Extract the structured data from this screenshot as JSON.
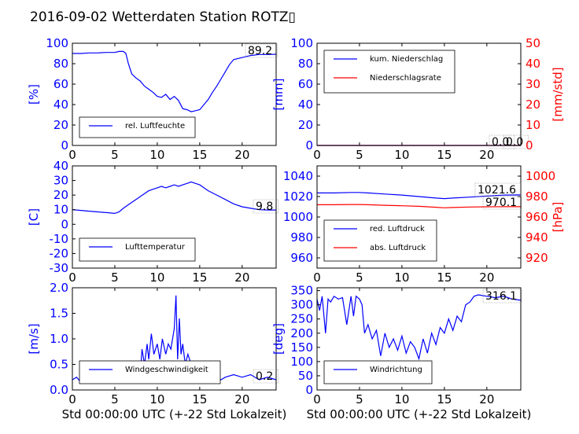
{
  "figure": {
    "title": "2016-09-02 Wetterdaten Station ROTZ▯"
  },
  "chart_data": [
    {
      "id": "humidity",
      "type": "line",
      "ylabel": "[%]",
      "ylim": [
        0,
        100
      ],
      "yticks": [
        0,
        20,
        40,
        60,
        80,
        100
      ],
      "xlim": [
        0,
        24
      ],
      "xticks": [
        0,
        5,
        10,
        15,
        20
      ],
      "series": [
        {
          "name": "rel. Luftfeuchte",
          "color": "#0000ff",
          "x": [
            0,
            1,
            2,
            3,
            4,
            5,
            5.5,
            6,
            6.3,
            6.6,
            7,
            7.5,
            8,
            8.5,
            9,
            9.5,
            10,
            10.5,
            11,
            11.5,
            12,
            12.5,
            13,
            13.5,
            14,
            14.5,
            15,
            15.5,
            16,
            16.5,
            17,
            17.5,
            18,
            18.5,
            19,
            20,
            21,
            22,
            23,
            24
          ],
          "y": [
            90,
            90,
            90.5,
            90.5,
            91,
            91,
            92,
            92,
            90,
            80,
            70,
            66,
            63,
            58,
            55,
            52,
            48,
            47,
            50,
            45,
            48,
            44,
            36,
            35,
            33,
            34,
            35,
            40,
            45,
            52,
            58,
            65,
            72,
            79,
            84,
            86,
            88,
            89,
            89,
            89.2
          ]
        }
      ],
      "value_label": "89.2"
    },
    {
      "id": "precip",
      "type": "line",
      "ylabel": "[mm]",
      "ylim": [
        0,
        100
      ],
      "yticks": [
        0,
        20,
        40,
        60,
        80,
        100
      ],
      "ylabel_right": "[mm/std]",
      "ylim_right": [
        0,
        50
      ],
      "yticks_right": [
        0,
        10,
        20,
        30,
        40,
        50
      ],
      "xlim": [
        0,
        24
      ],
      "xticks": [
        0,
        5,
        10,
        15,
        20
      ],
      "series": [
        {
          "name": "kum. Niederschlag",
          "color": "#0000ff",
          "axis": "left",
          "x": [
            0,
            24
          ],
          "y": [
            0,
            0
          ]
        },
        {
          "name": "Niederschlagsrate",
          "color": "#ff0000",
          "axis": "right",
          "x": [
            0,
            24
          ],
          "y": [
            0,
            0
          ]
        }
      ],
      "value_labels": [
        "0.0",
        "0.0"
      ]
    },
    {
      "id": "temperature",
      "type": "line",
      "ylabel": "[C]",
      "ylim": [
        -30,
        40
      ],
      "yticks": [
        -30,
        -20,
        -10,
        0,
        10,
        20,
        30,
        40
      ],
      "xlim": [
        0,
        24
      ],
      "xticks": [
        0,
        5,
        10,
        15,
        20
      ],
      "series": [
        {
          "name": "Lufttemperatur",
          "color": "#0000ff",
          "x": [
            0,
            1,
            2,
            3,
            4,
            5,
            5.5,
            6,
            6.5,
            7,
            7.5,
            8,
            8.5,
            9,
            9.5,
            10,
            10.5,
            11,
            11.5,
            12,
            12.5,
            13,
            13.5,
            14,
            14.5,
            15,
            15.5,
            16,
            17,
            18,
            19,
            20,
            21,
            22,
            23,
            24
          ],
          "y": [
            10,
            9.5,
            9,
            8.5,
            8,
            7.5,
            8.5,
            11,
            13,
            15,
            17,
            19,
            21,
            23,
            24,
            25,
            26,
            25,
            26,
            27,
            26,
            27,
            28,
            29,
            28,
            27,
            25,
            23,
            20,
            17,
            14,
            12,
            11,
            10,
            9.8,
            9.8
          ]
        }
      ],
      "value_label": "9.8"
    },
    {
      "id": "pressure",
      "type": "line",
      "ylim": [
        950,
        1050
      ],
      "yticks": [
        960,
        980,
        1000,
        1020,
        1040
      ],
      "ylabel_right": "[hPa]",
      "ylim_right": [
        910,
        1010
      ],
      "yticks_right": [
        920,
        940,
        960,
        980,
        1000
      ],
      "xlim": [
        0,
        24
      ],
      "xticks": [
        0,
        5,
        10,
        15,
        20
      ],
      "series": [
        {
          "name": "red. Luftdruck",
          "color": "#0000ff",
          "axis": "left",
          "x": [
            0,
            2,
            4,
            5,
            6,
            8,
            10,
            12,
            14,
            15,
            16,
            18,
            20,
            22,
            24
          ],
          "y": [
            1023.5,
            1023.5,
            1024,
            1024,
            1023.5,
            1022.5,
            1021.5,
            1020,
            1018.5,
            1018,
            1018.5,
            1019.5,
            1020.5,
            1021.5,
            1021.6
          ]
        },
        {
          "name": "abs. Luftdruck",
          "color": "#ff0000",
          "axis": "right",
          "x": [
            0,
            2,
            4,
            5,
            6,
            8,
            10,
            12,
            14,
            15,
            16,
            18,
            20,
            22,
            24
          ],
          "y": [
            972,
            972,
            972.2,
            972.2,
            972,
            971.5,
            971,
            970.5,
            969.5,
            969,
            969.3,
            969.8,
            970,
            970.1,
            970.1
          ]
        }
      ],
      "value_labels": [
        "1021.6",
        "970.1"
      ]
    },
    {
      "id": "wind_speed",
      "type": "line",
      "ylabel": "[m/s]",
      "ylim": [
        0,
        2.0
      ],
      "yticks": [
        0.0,
        0.5,
        1.0,
        1.5,
        2.0
      ],
      "xlim": [
        0,
        24
      ],
      "xticks": [
        0,
        5,
        10,
        15,
        20
      ],
      "xlabel": "Std 00:00:00 UTC (+-22 Std Lokalzeit)",
      "series": [
        {
          "name": "Windgeschwindigkeit",
          "color": "#0000ff",
          "x": [
            0,
            0.5,
            1,
            1.5,
            2,
            2.5,
            3,
            3.5,
            4,
            4.5,
            5,
            5.5,
            6,
            6.5,
            7,
            7.5,
            8,
            8.2,
            8.5,
            8.8,
            9,
            9.3,
            9.6,
            10,
            10.3,
            10.6,
            11,
            11.3,
            11.6,
            12,
            12.2,
            12.4,
            12.6,
            12.8,
            13,
            13.3,
            13.6,
            14,
            14.5,
            15,
            15.5,
            16,
            16.5,
            17,
            17.5,
            18,
            19,
            20,
            21,
            22,
            23,
            24
          ],
          "y": [
            0.2,
            0.25,
            0.15,
            0.3,
            0.2,
            0.35,
            0.25,
            0.3,
            0.2,
            0.35,
            0.25,
            0.3,
            0.2,
            0.3,
            0.25,
            0.35,
            0.3,
            0.8,
            0.5,
            0.9,
            0.6,
            1.1,
            0.7,
            0.9,
            0.6,
            1.0,
            0.7,
            0.9,
            0.8,
            1.2,
            1.85,
            0.6,
            1.4,
            0.7,
            0.9,
            0.5,
            0.7,
            0.5,
            0.4,
            0.5,
            0.35,
            0.4,
            0.3,
            0.25,
            0.2,
            0.25,
            0.3,
            0.25,
            0.3,
            0.2,
            0.25,
            0.2
          ]
        }
      ],
      "value_label": "0.2"
    },
    {
      "id": "wind_direction",
      "type": "line",
      "ylabel": "[deg]",
      "ylim": [
        0,
        360
      ],
      "yticks": [
        0,
        50,
        100,
        150,
        200,
        250,
        300,
        350
      ],
      "xlim": [
        0,
        24
      ],
      "xticks": [
        0,
        5,
        10,
        15,
        20
      ],
      "xlabel": "Std 00:00:00 UTC (+-22 Std Lokalzeit)",
      "series": [
        {
          "name": "Windrichtung",
          "color": "#0000ff",
          "x": [
            0,
            0.3,
            0.6,
            1,
            1.3,
            1.6,
            2,
            2.5,
            3,
            3.5,
            4,
            4.3,
            4.6,
            5,
            5.3,
            5.6,
            6,
            6.5,
            7,
            7.5,
            8,
            8.5,
            9,
            9.5,
            10,
            10.5,
            11,
            11.5,
            12,
            12.5,
            13,
            13.5,
            14,
            14.5,
            15,
            15.5,
            16,
            16.5,
            17,
            17.5,
            18,
            18.5,
            19,
            20,
            21,
            22,
            23,
            24
          ],
          "y": [
            320,
            280,
            330,
            200,
            320,
            310,
            330,
            320,
            325,
            230,
            330,
            260,
            330,
            320,
            300,
            200,
            230,
            180,
            210,
            120,
            200,
            150,
            180,
            140,
            190,
            130,
            170,
            150,
            110,
            180,
            130,
            200,
            160,
            220,
            200,
            250,
            210,
            260,
            240,
            300,
            310,
            330,
            335,
            330,
            325,
            330,
            320,
            316.1
          ]
        }
      ],
      "value_label": "316.1"
    }
  ]
}
